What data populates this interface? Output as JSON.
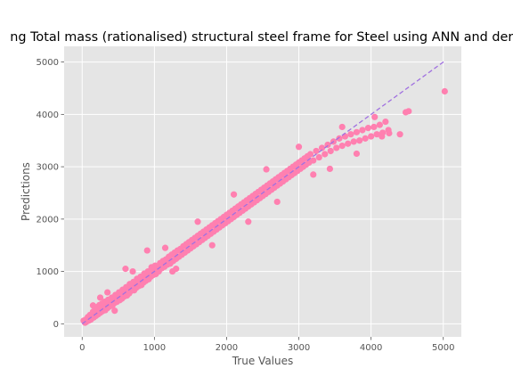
{
  "chart_data": {
    "type": "scatter",
    "title": "ng Total mass (rationalised) structural steel frame for Steel using ANN and deriv",
    "xlabel": "True Values",
    "ylabel": "Predictions",
    "xlim": [
      -250,
      5250
    ],
    "ylim": [
      -250,
      5300
    ],
    "xticks": [
      0,
      1000,
      2000,
      3000,
      4000,
      5000
    ],
    "yticks": [
      0,
      1000,
      2000,
      3000,
      4000,
      5000
    ],
    "grid": true,
    "background_color": "#E5E5E5",
    "grid_color": "#FFFFFF",
    "point_color": "#FF80B0",
    "line_color": "#A070E0",
    "reference_line": {
      "style": "dashed",
      "from": [
        0,
        0
      ],
      "to": [
        5020,
        5020
      ]
    },
    "series": [
      {
        "points": [
          [
            20,
            60
          ],
          [
            40,
            20
          ],
          [
            50,
            80
          ],
          [
            60,
            40
          ],
          [
            80,
            130
          ],
          [
            90,
            60
          ],
          [
            100,
            110
          ],
          [
            110,
            170
          ],
          [
            120,
            80
          ],
          [
            140,
            150
          ],
          [
            150,
            230
          ],
          [
            160,
            120
          ],
          [
            170,
            200
          ],
          [
            180,
            280
          ],
          [
            190,
            150
          ],
          [
            200,
            250
          ],
          [
            210,
            320
          ],
          [
            220,
            180
          ],
          [
            230,
            280
          ],
          [
            240,
            360
          ],
          [
            250,
            210
          ],
          [
            260,
            300
          ],
          [
            270,
            380
          ],
          [
            280,
            240
          ],
          [
            300,
            350
          ],
          [
            310,
            420
          ],
          [
            320,
            260
          ],
          [
            340,
            400
          ],
          [
            350,
            300
          ],
          [
            360,
            460
          ],
          [
            380,
            330
          ],
          [
            400,
            430
          ],
          [
            410,
            500
          ],
          [
            420,
            350
          ],
          [
            440,
            470
          ],
          [
            450,
            400
          ],
          [
            460,
            550
          ],
          [
            480,
            420
          ],
          [
            500,
            520
          ],
          [
            510,
            600
          ],
          [
            520,
            450
          ],
          [
            540,
            560
          ],
          [
            550,
            480
          ],
          [
            560,
            650
          ],
          [
            580,
            520
          ],
          [
            600,
            620
          ],
          [
            610,
            700
          ],
          [
            620,
            540
          ],
          [
            640,
            660
          ],
          [
            650,
            580
          ],
          [
            660,
            760
          ],
          [
            680,
            630
          ],
          [
            700,
            720
          ],
          [
            710,
            800
          ],
          [
            720,
            640
          ],
          [
            740,
            770
          ],
          [
            750,
            690
          ],
          [
            760,
            860
          ],
          [
            780,
            720
          ],
          [
            800,
            820
          ],
          [
            810,
            900
          ],
          [
            820,
            740
          ],
          [
            840,
            870
          ],
          [
            850,
            790
          ],
          [
            860,
            960
          ],
          [
            880,
            820
          ],
          [
            900,
            930
          ],
          [
            910,
            1000
          ],
          [
            920,
            850
          ],
          [
            940,
            980
          ],
          [
            950,
            900
          ],
          [
            960,
            1080
          ],
          [
            980,
            930
          ],
          [
            1000,
            1030
          ],
          [
            1010,
            1110
          ],
          [
            1020,
            950
          ],
          [
            1040,
            1080
          ],
          [
            1060,
            1000
          ],
          [
            1080,
            1160
          ],
          [
            1100,
            1060
          ],
          [
            1120,
            1200
          ],
          [
            1140,
            1090
          ],
          [
            1160,
            1230
          ],
          [
            1180,
            1130
          ],
          [
            1200,
            1280
          ],
          [
            1220,
            1150
          ],
          [
            1240,
            1320
          ],
          [
            1260,
            1200
          ],
          [
            1280,
            1360
          ],
          [
            1300,
            1240
          ],
          [
            1320,
            1400
          ],
          [
            1340,
            1280
          ],
          [
            1360,
            1430
          ],
          [
            1380,
            1320
          ],
          [
            1400,
            1480
          ],
          [
            1420,
            1360
          ],
          [
            1440,
            1520
          ],
          [
            1460,
            1400
          ],
          [
            1480,
            1560
          ],
          [
            1500,
            1440
          ],
          [
            1520,
            1600
          ],
          [
            1540,
            1480
          ],
          [
            1560,
            1640
          ],
          [
            1580,
            1520
          ],
          [
            1600,
            1680
          ],
          [
            1620,
            1560
          ],
          [
            1640,
            1720
          ],
          [
            1660,
            1600
          ],
          [
            1680,
            1760
          ],
          [
            1700,
            1640
          ],
          [
            1720,
            1800
          ],
          [
            1740,
            1680
          ],
          [
            1760,
            1840
          ],
          [
            1780,
            1720
          ],
          [
            1800,
            1880
          ],
          [
            1820,
            1760
          ],
          [
            1840,
            1920
          ],
          [
            1860,
            1800
          ],
          [
            1880,
            1960
          ],
          [
            1900,
            1840
          ],
          [
            1920,
            2000
          ],
          [
            1940,
            1880
          ],
          [
            1960,
            2040
          ],
          [
            1980,
            1920
          ],
          [
            2000,
            2080
          ],
          [
            2020,
            1960
          ],
          [
            2040,
            2120
          ],
          [
            2060,
            2000
          ],
          [
            2080,
            2160
          ],
          [
            2100,
            2040
          ],
          [
            2120,
            2200
          ],
          [
            2140,
            2080
          ],
          [
            2160,
            2240
          ],
          [
            2180,
            2120
          ],
          [
            2200,
            2280
          ],
          [
            2220,
            2160
          ],
          [
            2240,
            2320
          ],
          [
            2260,
            2200
          ],
          [
            2280,
            2360
          ],
          [
            2300,
            2240
          ],
          [
            2320,
            2400
          ],
          [
            2340,
            2280
          ],
          [
            2360,
            2440
          ],
          [
            2380,
            2320
          ],
          [
            2400,
            2480
          ],
          [
            2420,
            2360
          ],
          [
            2440,
            2520
          ],
          [
            2460,
            2400
          ],
          [
            2480,
            2560
          ],
          [
            2500,
            2440
          ],
          [
            2520,
            2600
          ],
          [
            2540,
            2480
          ],
          [
            2560,
            2640
          ],
          [
            2580,
            2520
          ],
          [
            2600,
            2680
          ],
          [
            2620,
            2560
          ],
          [
            2640,
            2720
          ],
          [
            2660,
            2600
          ],
          [
            2680,
            2760
          ],
          [
            2700,
            2640
          ],
          [
            2720,
            2800
          ],
          [
            2740,
            2680
          ],
          [
            2760,
            2840
          ],
          [
            2780,
            2720
          ],
          [
            2800,
            2880
          ],
          [
            2820,
            2760
          ],
          [
            2840,
            2920
          ],
          [
            2860,
            2800
          ],
          [
            2880,
            2960
          ],
          [
            2900,
            2840
          ],
          [
            2920,
            3000
          ],
          [
            2940,
            2880
          ],
          [
            2960,
            3040
          ],
          [
            2980,
            2920
          ],
          [
            3000,
            3080
          ],
          [
            3020,
            2960
          ],
          [
            3040,
            3120
          ],
          [
            3060,
            3000
          ],
          [
            3080,
            3160
          ],
          [
            3100,
            3040
          ],
          [
            3120,
            3200
          ],
          [
            3140,
            3080
          ],
          [
            3160,
            3240
          ],
          [
            3200,
            3120
          ],
          [
            3240,
            3300
          ],
          [
            3280,
            3180
          ],
          [
            3320,
            3360
          ],
          [
            3360,
            3240
          ],
          [
            3400,
            3420
          ],
          [
            3440,
            3300
          ],
          [
            3480,
            3480
          ],
          [
            3520,
            3360
          ],
          [
            3560,
            3540
          ],
          [
            3600,
            3400
          ],
          [
            3640,
            3580
          ],
          [
            3680,
            3440
          ],
          [
            3720,
            3620
          ],
          [
            3760,
            3480
          ],
          [
            3800,
            3660
          ],
          [
            3840,
            3500
          ],
          [
            3880,
            3700
          ],
          [
            3920,
            3540
          ],
          [
            3960,
            3740
          ],
          [
            4000,
            3580
          ],
          [
            4040,
            3760
          ],
          [
            4080,
            3620
          ],
          [
            4120,
            3800
          ],
          [
            4160,
            3650
          ],
          [
            4200,
            3860
          ],
          [
            4240,
            3700
          ],
          [
            4400,
            3620
          ],
          [
            4480,
            4040
          ],
          [
            4520,
            4060
          ],
          [
            5020,
            4440
          ],
          [
            600,
            1050
          ],
          [
            700,
            1000
          ],
          [
            900,
            1400
          ],
          [
            1300,
            1050
          ],
          [
            1600,
            1950
          ],
          [
            1800,
            1500
          ],
          [
            2100,
            2470
          ],
          [
            2300,
            1950
          ],
          [
            2550,
            2950
          ],
          [
            2700,
            2330
          ],
          [
            3000,
            3380
          ],
          [
            3200,
            2850
          ],
          [
            3430,
            2960
          ],
          [
            3600,
            3760
          ],
          [
            3800,
            3250
          ],
          [
            4050,
            3950
          ],
          [
            4150,
            3580
          ],
          [
            4250,
            3640
          ],
          [
            350,
            600
          ],
          [
            450,
            250
          ],
          [
            250,
            500
          ],
          [
            150,
            350
          ],
          [
            1150,
            1450
          ],
          [
            1250,
            1000
          ]
        ]
      }
    ]
  }
}
